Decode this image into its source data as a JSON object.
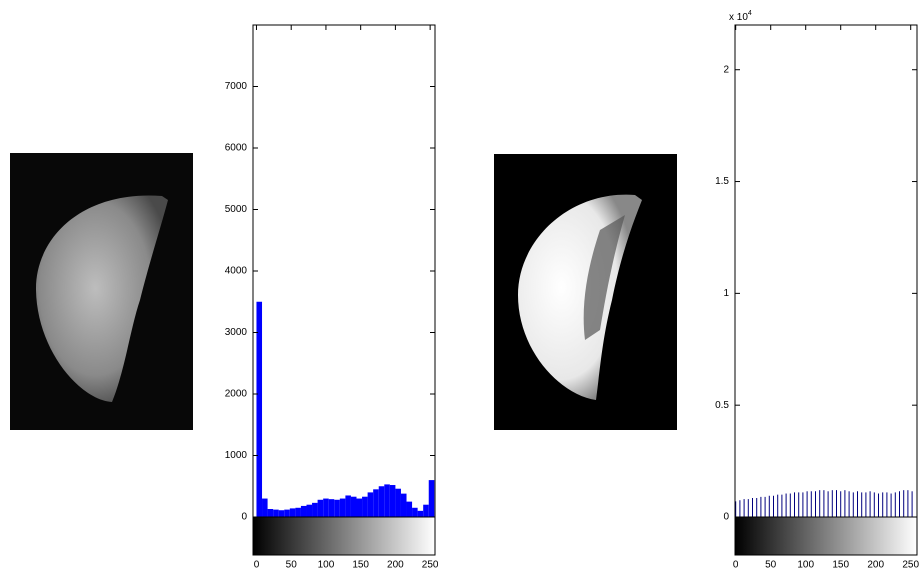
{
  "chart_data": [
    {
      "type": "histogram",
      "bins": [
        0,
        8,
        16,
        24,
        32,
        40,
        48,
        56,
        64,
        72,
        80,
        88,
        96,
        104,
        112,
        120,
        128,
        136,
        144,
        152,
        160,
        168,
        176,
        184,
        192,
        200,
        208,
        216,
        224,
        232,
        240,
        248,
        256
      ],
      "values": [
        3500,
        300,
        130,
        120,
        110,
        120,
        140,
        150,
        180,
        200,
        230,
        280,
        300,
        290,
        280,
        300,
        350,
        330,
        300,
        330,
        400,
        450,
        500,
        530,
        520,
        460,
        380,
        250,
        150,
        100,
        200,
        600
      ],
      "color": "#0000ff",
      "xlim": [
        -5,
        257
      ],
      "xticks": [
        0,
        50,
        100,
        150,
        200,
        250
      ],
      "ylim": [
        0,
        8000
      ],
      "yticks": [
        0,
        1000,
        2000,
        3000,
        4000,
        5000,
        6000,
        7000
      ]
    },
    {
      "type": "stem",
      "x": [
        0,
        6,
        12,
        18,
        24,
        30,
        36,
        42,
        48,
        54,
        60,
        66,
        72,
        78,
        84,
        90,
        96,
        102,
        108,
        114,
        120,
        126,
        132,
        138,
        144,
        150,
        156,
        162,
        168,
        174,
        180,
        186,
        192,
        198,
        204,
        210,
        216,
        222,
        228,
        234,
        240,
        246,
        252
      ],
      "values": [
        700,
        750,
        800,
        800,
        850,
        850,
        900,
        900,
        950,
        950,
        1000,
        1000,
        1050,
        1050,
        1100,
        1100,
        1100,
        1150,
        1150,
        1150,
        1200,
        1200,
        1150,
        1200,
        1200,
        1150,
        1200,
        1150,
        1100,
        1150,
        1100,
        1100,
        1150,
        1100,
        1050,
        1100,
        1100,
        1050,
        1100,
        1150,
        1200,
        1200,
        1150
      ],
      "color": "#00007f",
      "xlim": [
        -1,
        259
      ],
      "xticks": [
        0,
        50,
        100,
        150,
        200,
        250
      ],
      "ylim": [
        0,
        22000
      ],
      "yticks": [
        0,
        {
          "value": 5000,
          "label": "0.5"
        },
        {
          "value": 10000,
          "label": "1"
        },
        {
          "value": 15000,
          "label": "1.5"
        },
        {
          "value": 20000,
          "label": "2"
        }
      ],
      "y_multiplier": {
        "base": "x 10",
        "exponent": "4"
      }
    }
  ]
}
